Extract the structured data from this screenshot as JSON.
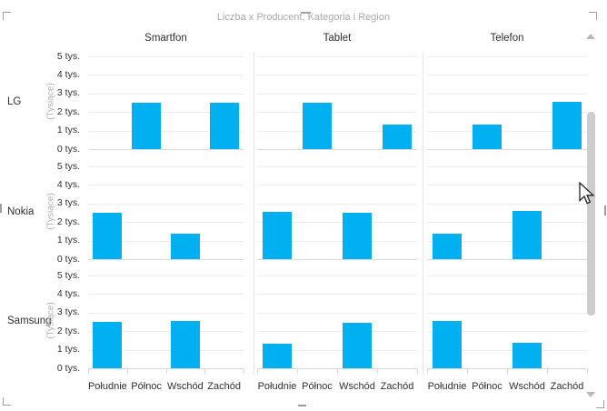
{
  "chart_data": {
    "type": "bar",
    "title": "Liczba x Producent, Kategoria i Region",
    "trellis": {
      "columns": [
        "Smartfon",
        "Tablet",
        "Telefon"
      ],
      "rows": [
        "LG",
        "Nokia",
        "Samsung"
      ]
    },
    "categories": [
      "Południe",
      "Północ",
      "Wschód",
      "Zachód"
    ],
    "y_axis": {
      "label": "(Tysiące)",
      "unit": "tys.",
      "min": 0,
      "max": 5,
      "ticks": [
        "5 tys.",
        "4 tys.",
        "3 tys.",
        "2 tys.",
        "1 tys.",
        "0 tys."
      ],
      "grid": true
    },
    "legend": "none",
    "values_in_thousands": {
      "LG": {
        "Smartfon": [
          0,
          2.5,
          0,
          2.5
        ],
        "Tablet": [
          0,
          2.5,
          0,
          1.3
        ],
        "Telefon": [
          0,
          1.3,
          0,
          2.55
        ]
      },
      "Nokia": {
        "Smartfon": [
          2.5,
          0,
          1.35,
          0
        ],
        "Tablet": [
          2.55,
          0,
          2.5,
          0
        ],
        "Telefon": [
          1.35,
          0,
          2.6,
          0
        ]
      },
      "Samsung": {
        "Smartfon": [
          2.5,
          0,
          2.55,
          0
        ],
        "Tablet": [
          1.3,
          0,
          2.45,
          0
        ],
        "Telefon": [
          2.55,
          0,
          1.35,
          0
        ]
      }
    }
  },
  "colors": {
    "bar": "#00b0f0",
    "title": "#a9a9a9",
    "axis_text": "#2e2e2e",
    "muted_text": "#b3b3b3",
    "gridline": "#ececec",
    "baseline": "#d9d9d9",
    "divider": "#e4e4e4",
    "handle": "#9e9e9e",
    "scrollbar": "#cdcdcd",
    "scroll_arrow": "#b8b8b8"
  },
  "scrollbar": {
    "orientation": "vertical",
    "thumb_visible": true,
    "up_arrow": "▲",
    "down_arrow": "▼"
  },
  "selection_frame": {
    "handles": [
      "top-left",
      "top-middle",
      "top-right",
      "left-middle",
      "right-middle",
      "bottom-left",
      "bottom-middle",
      "bottom-right"
    ]
  }
}
